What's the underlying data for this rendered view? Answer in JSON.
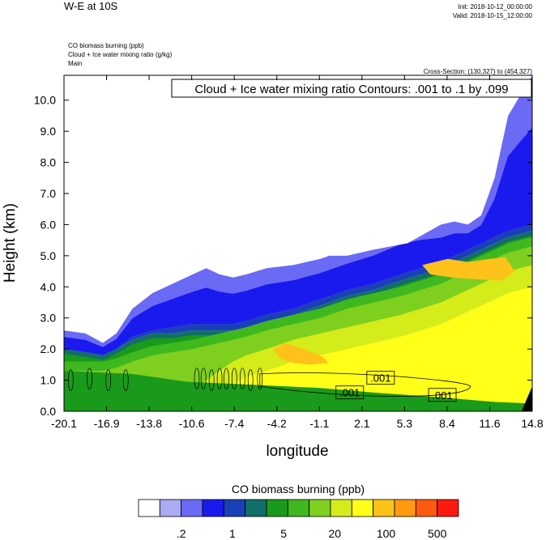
{
  "header": {
    "title": "W-E at 10S",
    "init": "Init: 2018-10-12_00:00:00",
    "valid": "Valid: 2018-10-15_12:00:00",
    "fields": [
      "CO biomass burning   (ppb)",
      "Cloud + Ice water mixing ratio   (g/kg)",
      "Main"
    ],
    "cross_section": "Cross-Section: (130,327) to (454,327)"
  },
  "chart_data": {
    "type": "heatmap",
    "title": "",
    "contour_label": "Cloud + Ice water mixing ratio Contours: .001 to .1 by .099",
    "xlabel": "longitude",
    "ylabel": "Height (km)",
    "xlim": [
      -20.1,
      14.8
    ],
    "ylim": [
      0.0,
      10.8
    ],
    "x_ticks": [
      "-20.1",
      "-16.9",
      "-13.8",
      "-10.6",
      "-7.4",
      "-4.2",
      "-1.1",
      "2.1",
      "5.3",
      "8.4",
      "11.6",
      "14.8"
    ],
    "y_ticks": [
      {
        "value": 0.0,
        "label": "0.0"
      },
      {
        "value": 1.0,
        "label": "1.0"
      },
      {
        "value": 2.0,
        "label": "2.0"
      },
      {
        "value": 3.0,
        "label": "3.0"
      },
      {
        "value": 4.0,
        "label": "4.0"
      },
      {
        "value": 5.0,
        "label": "5.0"
      },
      {
        "value": 6.0,
        "label": "6.0"
      },
      {
        "value": 7.0,
        "label": "7.0"
      },
      {
        "value": 8.0,
        "label": "8.0"
      },
      {
        "value": 9.0,
        "label": "9.0"
      },
      {
        "value": 10.0,
        "label": "10.0"
      }
    ],
    "contour_labels": [
      {
        "x": 1.2,
        "y": 0.58,
        "label": ".001"
      },
      {
        "x": 3.5,
        "y": 1.05,
        "label": ".001"
      },
      {
        "x": 8.1,
        "y": 0.5,
        "label": ".001"
      }
    ],
    "colorbar": {
      "title": "CO biomass burning  (ppb)",
      "colors": [
        "#ffffff",
        "#aaaaf5",
        "#6a6af5",
        "#1a1aee",
        "#1a40b8",
        "#126e68",
        "#1a9a1a",
        "#3fb81f",
        "#7fcf1f",
        "#d4ec1a",
        "#ffff1a",
        "#ffc21a",
        "#ff9a10",
        "#ff5a10",
        "#ff1a10"
      ],
      "tick_labels": [
        ".2",
        "1",
        "5",
        "20",
        "100",
        "500"
      ]
    },
    "profile_notes": "Filled bands shown as boundary heights (km) sampled at longitudes",
    "profile_x": [
      -20.1,
      -18.5,
      -17.2,
      -16.2,
      -15.0,
      -13.5,
      -12.0,
      -10.5,
      -9.5,
      -8.5,
      -7.5,
      -6.5,
      -5.0,
      -3.0,
      -1.0,
      1.0,
      3.0,
      5.0,
      6.5,
      8.0,
      9.0,
      10.0,
      11.0,
      12.0,
      13.0,
      14.8
    ],
    "cloud_top": [
      2.6,
      2.5,
      2.2,
      2.5,
      3.3,
      3.8,
      4.1,
      4.4,
      4.6,
      4.4,
      4.3,
      4.4,
      4.6,
      4.7,
      4.9,
      5.2,
      5.5,
      5.9,
      6.0,
      6.0,
      6.1,
      6.0,
      6.3,
      7.5,
      9.5,
      10.8
    ],
    "blue_band_bottom": [
      2.0,
      1.9,
      1.8,
      2.0,
      2.4,
      2.6,
      2.7,
      2.8,
      2.8,
      2.8,
      2.8,
      2.9,
      3.1,
      3.3,
      3.6,
      3.9,
      4.1,
      4.4,
      4.6,
      4.8,
      5.0,
      5.2,
      5.4,
      5.6,
      5.8,
      6.0
    ],
    "green_top": [
      2.0,
      1.9,
      1.8,
      2.0,
      2.3,
      2.5,
      2.5,
      2.6,
      2.6,
      2.6,
      2.6,
      2.7,
      2.9,
      3.1,
      3.4,
      3.7,
      3.9,
      4.2,
      4.4,
      4.6,
      4.8,
      5.0,
      5.2,
      5.4,
      5.6,
      5.8
    ],
    "yellow_green_top": [
      1.3,
      1.3,
      1.3,
      1.4,
      1.6,
      1.8,
      1.9,
      2.0,
      2.1,
      2.2,
      2.3,
      2.4,
      2.6,
      2.8,
      3.0,
      3.3,
      3.5,
      3.7,
      3.9,
      4.1,
      4.3,
      4.5,
      4.7,
      4.9,
      5.1,
      5.3
    ],
    "yellow_top": [
      0.0,
      0.0,
      0.0,
      0.0,
      0.0,
      0.0,
      0.6,
      1.0,
      1.4,
      1.7,
      2.0,
      2.2,
      2.4,
      2.7,
      2.9,
      3.1,
      3.3,
      3.5,
      3.7,
      3.9,
      4.1,
      4.3,
      4.5,
      4.7,
      4.9,
      5.1
    ]
  }
}
